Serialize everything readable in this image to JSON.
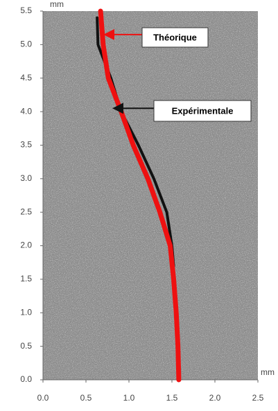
{
  "chart_data": {
    "type": "line",
    "x_unit": "mm",
    "y_unit": "mm",
    "xlim": [
      0,
      2.5
    ],
    "ylim": [
      0,
      5.5
    ],
    "xticks": [
      {
        "value": 0,
        "label": "0.0"
      },
      {
        "value": 0.5,
        "label": "0.5"
      },
      {
        "value": 1,
        "label": "1.0"
      },
      {
        "value": 1.5,
        "label": "1.5"
      },
      {
        "value": 2,
        "label": "2.0"
      },
      {
        "value": 2.5,
        "label": "2.5"
      }
    ],
    "yticks": [
      {
        "value": 0,
        "label": "0.0"
      },
      {
        "value": 0.5,
        "label": "0.5"
      },
      {
        "value": 1,
        "label": "1.0"
      },
      {
        "value": 1.5,
        "label": "1.5"
      },
      {
        "value": 2,
        "label": "2.0"
      },
      {
        "value": 2.5,
        "label": "2.5"
      },
      {
        "value": 3,
        "label": "3.0"
      },
      {
        "value": 3.5,
        "label": "3.5"
      },
      {
        "value": 4,
        "label": "4.0"
      },
      {
        "value": 4.5,
        "label": "4.5"
      },
      {
        "value": 5,
        "label": "5.0"
      },
      {
        "value": 5.5,
        "label": "5.5"
      }
    ],
    "series": [
      {
        "name": "Théorique",
        "color": "#ee1111",
        "x": [
          0.67,
          0.7,
          0.76,
          0.91,
          1.05,
          1.22,
          1.36,
          1.48,
          1.52,
          1.55,
          1.57,
          1.58
        ],
        "values": [
          5.5,
          5.0,
          4.5,
          4.0,
          3.5,
          3.0,
          2.5,
          2.0,
          1.5,
          1.0,
          0.5,
          0.0
        ]
      },
      {
        "name": "Expérimentale",
        "color": "#111111",
        "x": [
          0.63,
          0.64,
          0.79,
          0.91,
          1.11,
          1.29,
          1.44,
          1.5,
          1.52
        ],
        "values": [
          5.4,
          5.0,
          4.5,
          4.0,
          3.5,
          3.0,
          2.5,
          2.0,
          1.7
        ]
      }
    ]
  }
}
